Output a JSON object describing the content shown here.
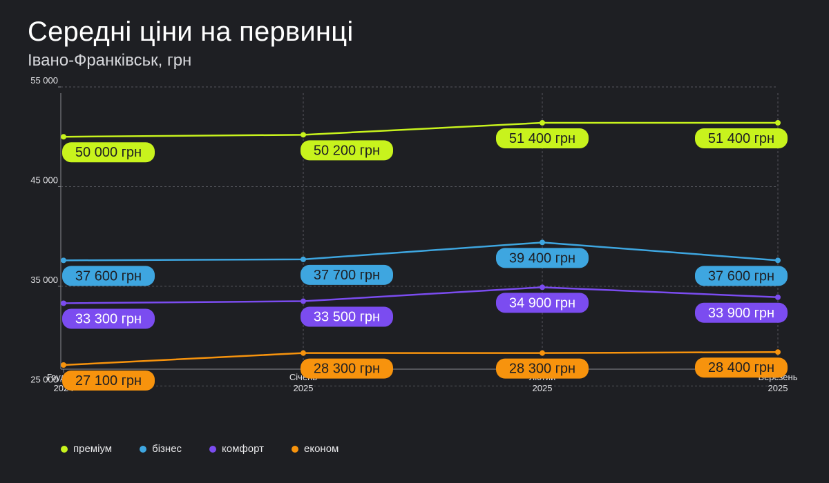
{
  "title": "Середні ціни на первинці",
  "subtitle": "Івано-Франківськ, грн",
  "chart_data": {
    "type": "line",
    "title": "Середні ціни на первинці",
    "subtitle": "Івано-Франківськ, грн",
    "categories": [
      [
        "Грудень",
        "2024"
      ],
      [
        "Січень",
        "2025"
      ],
      [
        "Лютий",
        "2025"
      ],
      [
        "Березень",
        "2025"
      ]
    ],
    "yticks": [
      "25 000",
      "35 000",
      "45 000",
      "55 000"
    ],
    "ytick_values": [
      25000,
      35000,
      45000,
      55000
    ],
    "ylim": [
      23500,
      56800
    ],
    "grid": true,
    "legend_position": "bottom-left",
    "value_suffix": "грн",
    "series": [
      {
        "name": "преміум",
        "color": "#c8f31d",
        "label_text_color": "#1e1f23",
        "values": [
          50000,
          50200,
          51400,
          51400
        ],
        "labels": [
          "50 000 грн",
          "50 200 грн",
          "51 400 грн",
          "51 400 грн"
        ]
      },
      {
        "name": "бізнес",
        "color": "#3ea6e0",
        "label_text_color": "#1e1f23",
        "values": [
          37600,
          37700,
          39400,
          37600
        ],
        "labels": [
          "37 600 грн",
          "37 700 грн",
          "39 400 грн",
          "37 600 грн"
        ]
      },
      {
        "name": "комфорт",
        "color": "#7b4cf0",
        "label_text_color": "#ffffff",
        "values": [
          33300,
          33500,
          34900,
          33900
        ],
        "labels": [
          "33 300 грн",
          "33 500 грн",
          "34 900 грн",
          "33 900 грн"
        ]
      },
      {
        "name": "економ",
        "color": "#f7930d",
        "label_text_color": "#1e1f23",
        "values": [
          27100,
          28300,
          28300,
          28400
        ],
        "labels": [
          "27 100 грн",
          "28 300 грн",
          "28 300 грн",
          "28 400 грн"
        ]
      }
    ]
  }
}
